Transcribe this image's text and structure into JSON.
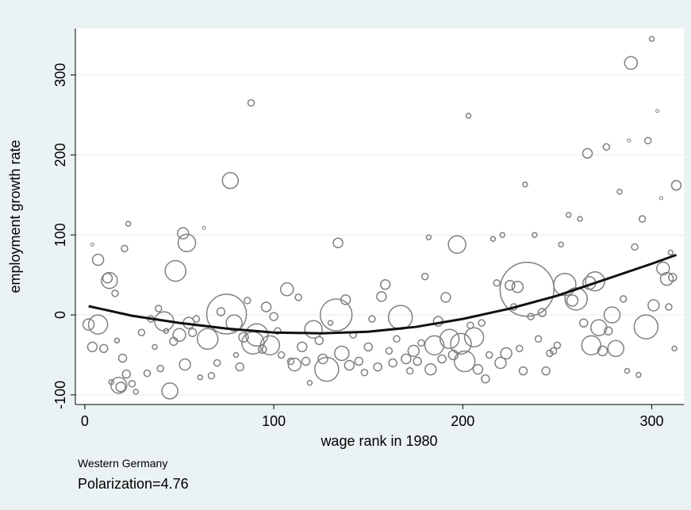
{
  "chart_data": {
    "type": "scatter",
    "xlabel": "wage rank in 1980",
    "ylabel": "employment growth rate",
    "xlim": [
      -5,
      317
    ],
    "ylim": [
      -112,
      358
    ],
    "x_ticks": [
      0,
      100,
      200,
      300
    ],
    "y_ticks": [
      -100,
      0,
      100,
      200,
      300
    ],
    "x_tick_labels": [
      "0",
      "100",
      "200",
      "300"
    ],
    "y_tick_labels": [
      "-100",
      "0",
      "100",
      "200",
      "300"
    ],
    "grid": "horizontal",
    "legend": "none",
    "marker": "hollow circle, size proportional to weight",
    "fit_line": {
      "type": "quadratic",
      "x": [
        2,
        25,
        50,
        75,
        100,
        125,
        150,
        175,
        200,
        225,
        250,
        275,
        300,
        313
      ],
      "y": [
        11,
        -1,
        -10,
        -17,
        -22,
        -23,
        -21,
        -15,
        -5,
        8,
        24,
        44,
        64,
        75
      ]
    },
    "points": [
      {
        "x": 2,
        "y": -12,
        "s": 7
      },
      {
        "x": 4,
        "y": 88,
        "s": 2
      },
      {
        "x": 4,
        "y": -40,
        "s": 6
      },
      {
        "x": 7,
        "y": 69,
        "s": 7
      },
      {
        "x": 7,
        "y": -12,
        "s": 12
      },
      {
        "x": 10,
        "y": -42,
        "s": 5
      },
      {
        "x": 12,
        "y": 46,
        "s": 6
      },
      {
        "x": 13,
        "y": 43,
        "s": 10
      },
      {
        "x": 14,
        "y": -84,
        "s": 3
      },
      {
        "x": 16,
        "y": 27,
        "s": 4
      },
      {
        "x": 17,
        "y": -32,
        "s": 3
      },
      {
        "x": 18,
        "y": -88,
        "s": 10
      },
      {
        "x": 19,
        "y": -90,
        "s": 6
      },
      {
        "x": 20,
        "y": -54,
        "s": 5
      },
      {
        "x": 21,
        "y": 83,
        "s": 4
      },
      {
        "x": 22,
        "y": -74,
        "s": 5
      },
      {
        "x": 23,
        "y": 114,
        "s": 3
      },
      {
        "x": 25,
        "y": -86,
        "s": 4
      },
      {
        "x": 27,
        "y": -96,
        "s": 3
      },
      {
        "x": 30,
        "y": -22,
        "s": 4
      },
      {
        "x": 33,
        "y": -73,
        "s": 4
      },
      {
        "x": 35,
        "y": -5,
        "s": 4
      },
      {
        "x": 37,
        "y": -40,
        "s": 3
      },
      {
        "x": 39,
        "y": 8,
        "s": 4
      },
      {
        "x": 40,
        "y": -67,
        "s": 4
      },
      {
        "x": 42,
        "y": -8,
        "s": 12
      },
      {
        "x": 43,
        "y": -20,
        "s": 3
      },
      {
        "x": 45,
        "y": -95,
        "s": 10
      },
      {
        "x": 47,
        "y": -33,
        "s": 5
      },
      {
        "x": 48,
        "y": 55,
        "s": 13
      },
      {
        "x": 50,
        "y": -25,
        "s": 8
      },
      {
        "x": 52,
        "y": 102,
        "s": 7
      },
      {
        "x": 53,
        "y": -62,
        "s": 7
      },
      {
        "x": 54,
        "y": 90,
        "s": 11
      },
      {
        "x": 55,
        "y": -10,
        "s": 7
      },
      {
        "x": 57,
        "y": -22,
        "s": 5
      },
      {
        "x": 59,
        "y": -5,
        "s": 4
      },
      {
        "x": 61,
        "y": -78,
        "s": 3
      },
      {
        "x": 63,
        "y": 109,
        "s": 2
      },
      {
        "x": 65,
        "y": -30,
        "s": 13
      },
      {
        "x": 67,
        "y": -76,
        "s": 4
      },
      {
        "x": 70,
        "y": -60,
        "s": 4
      },
      {
        "x": 72,
        "y": 4,
        "s": 5
      },
      {
        "x": 75,
        "y": 1,
        "s": 25
      },
      {
        "x": 77,
        "y": 168,
        "s": 10
      },
      {
        "x": 79,
        "y": -10,
        "s": 10
      },
      {
        "x": 80,
        "y": -50,
        "s": 3
      },
      {
        "x": 82,
        "y": -65,
        "s": 5
      },
      {
        "x": 84,
        "y": -28,
        "s": 6
      },
      {
        "x": 86,
        "y": 18,
        "s": 4
      },
      {
        "x": 88,
        "y": 265,
        "s": 4
      },
      {
        "x": 89,
        "y": -35,
        "s": 14
      },
      {
        "x": 91,
        "y": -25,
        "s": 14
      },
      {
        "x": 94,
        "y": -43,
        "s": 5
      },
      {
        "x": 96,
        "y": 10,
        "s": 6
      },
      {
        "x": 98,
        "y": -38,
        "s": 12
      },
      {
        "x": 100,
        "y": -2,
        "s": 5
      },
      {
        "x": 102,
        "y": -20,
        "s": 4
      },
      {
        "x": 104,
        "y": -50,
        "s": 4
      },
      {
        "x": 107,
        "y": 32,
        "s": 8
      },
      {
        "x": 109,
        "y": -58,
        "s": 4
      },
      {
        "x": 111,
        "y": -62,
        "s": 8
      },
      {
        "x": 113,
        "y": 22,
        "s": 4
      },
      {
        "x": 115,
        "y": -40,
        "s": 6
      },
      {
        "x": 117,
        "y": -58,
        "s": 5
      },
      {
        "x": 119,
        "y": -85,
        "s": 3
      },
      {
        "x": 121,
        "y": -18,
        "s": 11
      },
      {
        "x": 124,
        "y": -32,
        "s": 5
      },
      {
        "x": 126,
        "y": -55,
        "s": 6
      },
      {
        "x": 128,
        "y": -68,
        "s": 15
      },
      {
        "x": 130,
        "y": -10,
        "s": 3
      },
      {
        "x": 133,
        "y": 0,
        "s": 20
      },
      {
        "x": 134,
        "y": 90,
        "s": 6
      },
      {
        "x": 136,
        "y": -48,
        "s": 9
      },
      {
        "x": 138,
        "y": 19,
        "s": 6
      },
      {
        "x": 140,
        "y": -63,
        "s": 6
      },
      {
        "x": 142,
        "y": -25,
        "s": 4
      },
      {
        "x": 145,
        "y": -58,
        "s": 5
      },
      {
        "x": 148,
        "y": -72,
        "s": 4
      },
      {
        "x": 150,
        "y": -40,
        "s": 5
      },
      {
        "x": 152,
        "y": -5,
        "s": 4
      },
      {
        "x": 155,
        "y": -65,
        "s": 5
      },
      {
        "x": 157,
        "y": 23,
        "s": 6
      },
      {
        "x": 159,
        "y": 38,
        "s": 6
      },
      {
        "x": 161,
        "y": -45,
        "s": 4
      },
      {
        "x": 163,
        "y": -60,
        "s": 5
      },
      {
        "x": 165,
        "y": -30,
        "s": 4
      },
      {
        "x": 167,
        "y": -3,
        "s": 15
      },
      {
        "x": 170,
        "y": -55,
        "s": 6
      },
      {
        "x": 172,
        "y": -70,
        "s": 4
      },
      {
        "x": 174,
        "y": -45,
        "s": 7
      },
      {
        "x": 176,
        "y": -58,
        "s": 5
      },
      {
        "x": 178,
        "y": -35,
        "s": 4
      },
      {
        "x": 180,
        "y": 48,
        "s": 4
      },
      {
        "x": 182,
        "y": 97,
        "s": 3
      },
      {
        "x": 183,
        "y": -68,
        "s": 7
      },
      {
        "x": 185,
        "y": -38,
        "s": 12
      },
      {
        "x": 187,
        "y": -8,
        "s": 6
      },
      {
        "x": 189,
        "y": -55,
        "s": 5
      },
      {
        "x": 191,
        "y": 22,
        "s": 6
      },
      {
        "x": 193,
        "y": -30,
        "s": 12
      },
      {
        "x": 195,
        "y": -50,
        "s": 6
      },
      {
        "x": 197,
        "y": 88,
        "s": 11
      },
      {
        "x": 199,
        "y": -36,
        "s": 13
      },
      {
        "x": 201,
        "y": -58,
        "s": 13
      },
      {
        "x": 203,
        "y": 249,
        "s": 3
      },
      {
        "x": 204,
        "y": -13,
        "s": 4
      },
      {
        "x": 206,
        "y": -28,
        "s": 12
      },
      {
        "x": 208,
        "y": -68,
        "s": 6
      },
      {
        "x": 210,
        "y": -10,
        "s": 4
      },
      {
        "x": 212,
        "y": -80,
        "s": 5
      },
      {
        "x": 214,
        "y": -50,
        "s": 4
      },
      {
        "x": 216,
        "y": 95,
        "s": 3
      },
      {
        "x": 218,
        "y": 40,
        "s": 4
      },
      {
        "x": 220,
        "y": -60,
        "s": 7
      },
      {
        "x": 221,
        "y": 100,
        "s": 3
      },
      {
        "x": 223,
        "y": -48,
        "s": 7
      },
      {
        "x": 225,
        "y": 37,
        "s": 6
      },
      {
        "x": 227,
        "y": 10,
        "s": 4
      },
      {
        "x": 229,
        "y": 35,
        "s": 7
      },
      {
        "x": 230,
        "y": -42,
        "s": 4
      },
      {
        "x": 232,
        "y": -70,
        "s": 5
      },
      {
        "x": 233,
        "y": 163,
        "s": 3
      },
      {
        "x": 234,
        "y": 32,
        "s": 34
      },
      {
        "x": 236,
        "y": -2,
        "s": 4
      },
      {
        "x": 238,
        "y": 100,
        "s": 3
      },
      {
        "x": 240,
        "y": -30,
        "s": 4
      },
      {
        "x": 242,
        "y": 3,
        "s": 5
      },
      {
        "x": 244,
        "y": -70,
        "s": 5
      },
      {
        "x": 246,
        "y": -48,
        "s": 4
      },
      {
        "x": 248,
        "y": -45,
        "s": 4
      },
      {
        "x": 250,
        "y": -38,
        "s": 4
      },
      {
        "x": 252,
        "y": 88,
        "s": 3
      },
      {
        "x": 254,
        "y": 38,
        "s": 14
      },
      {
        "x": 256,
        "y": 125,
        "s": 3
      },
      {
        "x": 258,
        "y": 18,
        "s": 7
      },
      {
        "x": 260,
        "y": 20,
        "s": 14
      },
      {
        "x": 262,
        "y": 120,
        "s": 3
      },
      {
        "x": 264,
        "y": -10,
        "s": 5
      },
      {
        "x": 266,
        "y": 202,
        "s": 6
      },
      {
        "x": 267,
        "y": 40,
        "s": 8
      },
      {
        "x": 268,
        "y": -38,
        "s": 12
      },
      {
        "x": 270,
        "y": 42,
        "s": 12
      },
      {
        "x": 272,
        "y": -16,
        "s": 10
      },
      {
        "x": 274,
        "y": -45,
        "s": 6
      },
      {
        "x": 276,
        "y": 210,
        "s": 4
      },
      {
        "x": 277,
        "y": -20,
        "s": 5
      },
      {
        "x": 279,
        "y": 0,
        "s": 10
      },
      {
        "x": 281,
        "y": -42,
        "s": 10
      },
      {
        "x": 283,
        "y": 154,
        "s": 3
      },
      {
        "x": 285,
        "y": 20,
        "s": 4
      },
      {
        "x": 287,
        "y": -70,
        "s": 3
      },
      {
        "x": 288,
        "y": 218,
        "s": 2
      },
      {
        "x": 289,
        "y": 315,
        "s": 8
      },
      {
        "x": 291,
        "y": 85,
        "s": 4
      },
      {
        "x": 293,
        "y": -75,
        "s": 3
      },
      {
        "x": 295,
        "y": 120,
        "s": 4
      },
      {
        "x": 297,
        "y": -15,
        "s": 15
      },
      {
        "x": 298,
        "y": 218,
        "s": 4
      },
      {
        "x": 300,
        "y": 345,
        "s": 3
      },
      {
        "x": 301,
        "y": 12,
        "s": 7
      },
      {
        "x": 303,
        "y": 255,
        "s": 2
      },
      {
        "x": 305,
        "y": 146,
        "s": 2
      },
      {
        "x": 306,
        "y": 58,
        "s": 8
      },
      {
        "x": 308,
        "y": 45,
        "s": 8
      },
      {
        "x": 309,
        "y": 10,
        "s": 4
      },
      {
        "x": 310,
        "y": 78,
        "s": 3
      },
      {
        "x": 311,
        "y": 47,
        "s": 5
      },
      {
        "x": 312,
        "y": -42,
        "s": 3
      },
      {
        "x": 313,
        "y": 162,
        "s": 6
      }
    ]
  },
  "note": {
    "region": "Western Germany",
    "stat": "Polarization=4.76"
  },
  "colors": {
    "background": "#eaf2f3",
    "plot_background": "#ffffff",
    "marker": "#808080",
    "fit_line": "#111111",
    "grid": "#e6eaec"
  }
}
